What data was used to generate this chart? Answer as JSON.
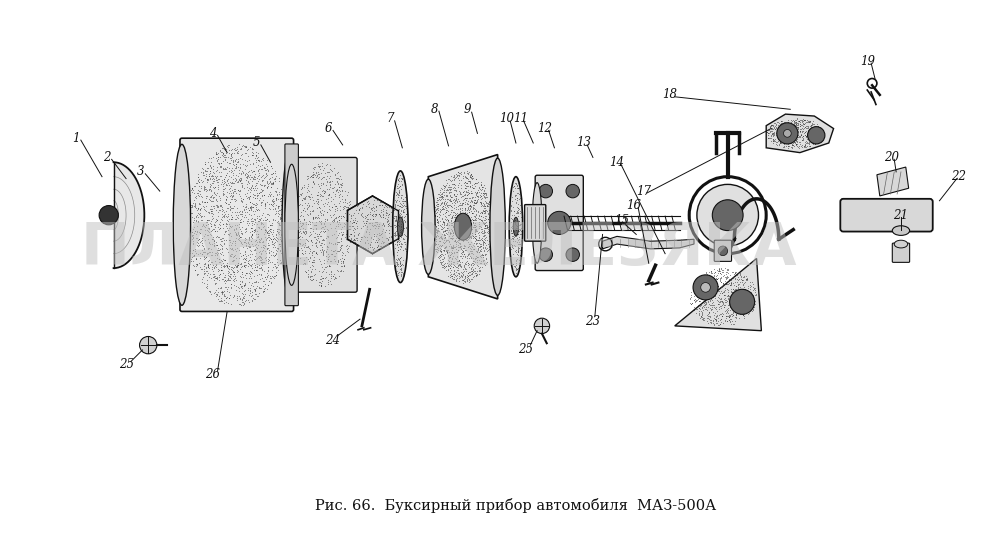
{
  "title": "Рис. 66.  Буксирный прибор автомобиля  МАЗ-500А",
  "watermark": "ПЛАНЕТА ЖЕЛЕЗЯКА",
  "bg_color": "#ffffff",
  "fig_width": 10.0,
  "fig_height": 5.43,
  "title_fontsize": 10.5,
  "watermark_fontsize": 42,
  "watermark_color": "#c0c0c0",
  "watermark_alpha": 0.5
}
